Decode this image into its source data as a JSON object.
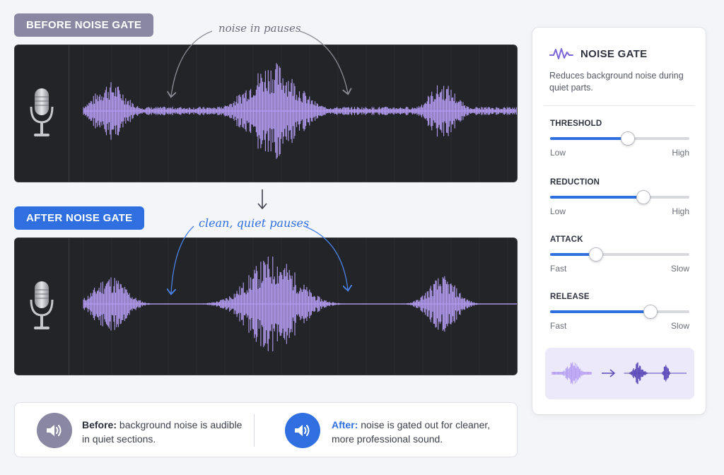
{
  "before": {
    "label": "BEFORE NOISE GATE",
    "annotation": "noise in pauses"
  },
  "after": {
    "label": "AFTER NOISE GATE",
    "annotation": "clean, quiet pauses"
  },
  "panel": {
    "title": "NOISE GATE",
    "description": "Reduces background noise during quiet parts.",
    "sliders": [
      {
        "label": "THRESHOLD",
        "min_label": "Low",
        "max_label": "High",
        "level": 0.56
      },
      {
        "label": "REDUCTION",
        "min_label": "Low",
        "max_label": "High",
        "level": 0.67
      },
      {
        "label": "ATTACK",
        "min_label": "Fast",
        "max_label": "Slow",
        "level": 0.33
      },
      {
        "label": "RELEASE",
        "min_label": "Fast",
        "max_label": "Slow",
        "level": 0.72
      }
    ]
  },
  "info": {
    "before_title": "Before:",
    "before_text": "background noise is audible in quiet sections.",
    "after_title": "After:",
    "after_text": "noise is gated out for cleaner, more professional sound."
  },
  "colors": {
    "accent": "#2f6fe0",
    "muted": "#8a87a2",
    "waveform": "#b49cf2",
    "panel_bg": "#222427"
  },
  "icons": [
    "microphone-icon",
    "waveform-icon",
    "speaker-icon",
    "arrow-down-icon",
    "arrow-right-icon"
  ]
}
